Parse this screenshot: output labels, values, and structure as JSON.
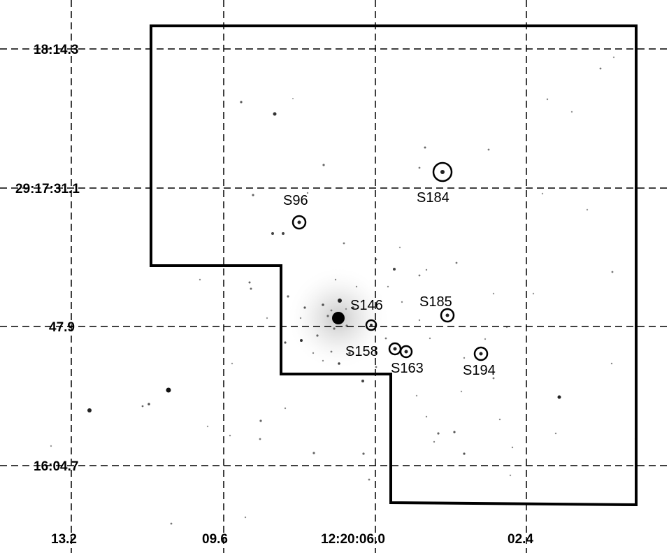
{
  "image": {
    "kind": "inverted greyscale sky image with coordinate grid and survey footprint",
    "coordinate_labels": {
      "ra_ticks": [
        "13.2",
        "09.6",
        "12:20:06.0",
        "02.4"
      ],
      "dec_ticks": [
        "18:14.3",
        "29:17:31.1",
        "47.9",
        "16:04.7"
      ]
    },
    "sources": [
      {
        "id": "S96",
        "label": "S96"
      },
      {
        "id": "S184",
        "label": "S184"
      },
      {
        "id": "S146",
        "label": "S146"
      },
      {
        "id": "S185",
        "label": "S185"
      },
      {
        "id": "S158",
        "label": "S158"
      },
      {
        "id": "S163",
        "label": "S163"
      },
      {
        "id": "S194",
        "label": "S194"
      }
    ]
  }
}
